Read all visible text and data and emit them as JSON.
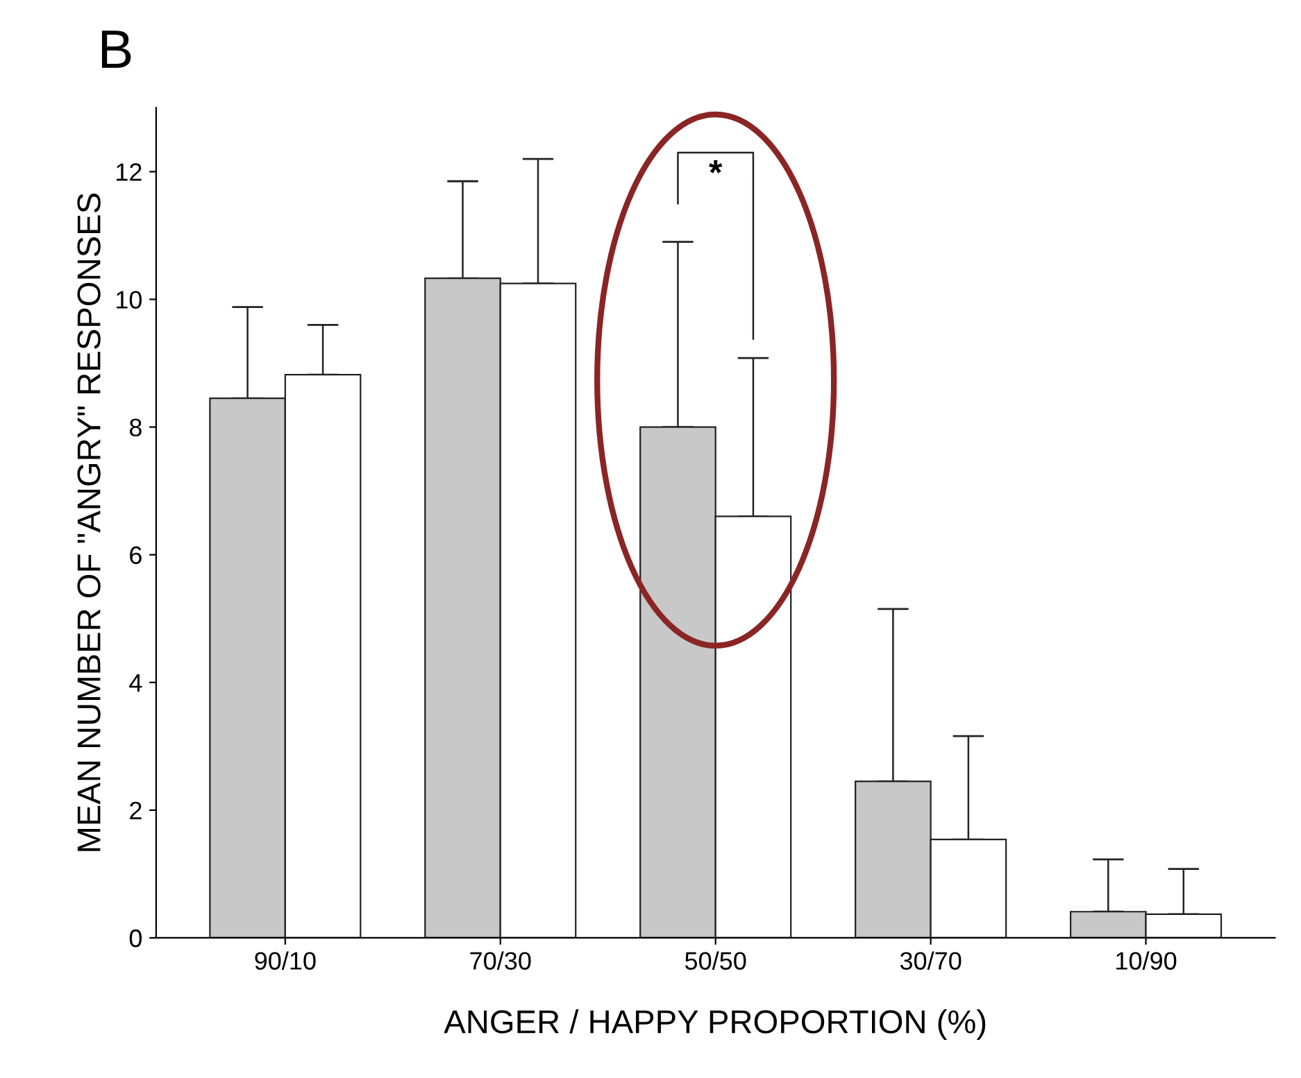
{
  "chart_data": {
    "type": "bar",
    "title": "B",
    "xlabel": "ANGER / HAPPY PROPORTION (%)",
    "ylabel": "MEAN NUMBER OF \"ANGRY\" RESPONSES",
    "categories": [
      "90/10",
      "70/30",
      "50/50",
      "30/70",
      "10/90"
    ],
    "series": [
      {
        "color": "#c8c8c8",
        "values": [
          8.45,
          10.33,
          8.0,
          2.45,
          0.41
        ],
        "errors": [
          [
            8.45,
            9.88
          ],
          [
            10.33,
            11.85
          ],
          [
            8.0,
            10.9
          ],
          [
            2.45,
            5.15
          ],
          [
            0.41,
            1.23
          ]
        ]
      },
      {
        "color": "#ffffff",
        "values": [
          8.82,
          10.25,
          6.6,
          1.54,
          0.37
        ],
        "errors": [
          [
            8.82,
            9.6
          ],
          [
            10.25,
            12.2
          ],
          [
            6.6,
            9.08
          ],
          [
            1.54,
            3.16
          ],
          [
            0.37,
            1.08
          ]
        ]
      }
    ],
    "ylim": [
      0,
      13
    ],
    "yticks": [
      0,
      2,
      4,
      6,
      8,
      10,
      12
    ],
    "grid": false,
    "legend": false,
    "annotations": [
      "*"
    ]
  }
}
